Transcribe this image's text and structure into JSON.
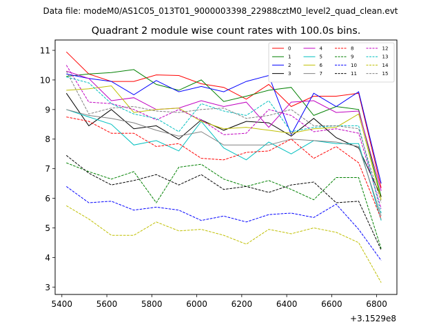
{
  "header": {
    "data_file": "Data file: modeM0/AS1C05_013T01_9000003398_22988cztM0_level2_quad_clean.evt"
  },
  "chart_data": {
    "type": "line",
    "title": "Quadrant 2 module wise count rates with 100.0s bins.",
    "x_offset_label": "+3.1529e8",
    "xlim": [
      5370,
      6890
    ],
    "ylim": [
      2.75,
      11.35
    ],
    "x_ticks": [
      5400,
      5600,
      5800,
      6000,
      6200,
      6400,
      6600,
      6800
    ],
    "x_tick_labels": [
      "5400",
      "5600",
      "5800",
      "6000",
      "6200",
      "6400",
      "6600",
      "6800"
    ],
    "y_ticks": [
      3,
      4,
      5,
      6,
      7,
      8,
      9,
      10,
      11
    ],
    "y_tick_labels": [
      "3",
      "4",
      "5",
      "6",
      "7",
      "8",
      "9",
      "10",
      "11"
    ],
    "x": [
      5420,
      5520,
      5620,
      5720,
      5820,
      5920,
      6020,
      6120,
      6220,
      6320,
      6420,
      6520,
      6620,
      6720,
      6820
    ],
    "legend_position": "top-right",
    "series": [
      {
        "name": "0",
        "color": "#ff0000",
        "style": "solid",
        "values": [
          10.95,
          10.2,
          9.95,
          9.95,
          10.17,
          10.15,
          9.87,
          9.75,
          9.35,
          9.85,
          9.1,
          9.45,
          9.45,
          9.55,
          6.35
        ]
      },
      {
        "name": "1",
        "color": "#008000",
        "style": "solid",
        "values": [
          10.12,
          10.2,
          10.25,
          10.35,
          9.85,
          9.65,
          10.0,
          9.27,
          9.45,
          9.65,
          9.75,
          8.8,
          9.1,
          9.0,
          6.05
        ]
      },
      {
        "name": "2",
        "color": "#0000ff",
        "style": "solid",
        "values": [
          10.2,
          10.05,
          9.95,
          9.5,
          9.98,
          9.6,
          9.78,
          9.6,
          9.95,
          10.15,
          8.15,
          9.55,
          9.1,
          9.6,
          6.5
        ]
      },
      {
        "name": "3",
        "color": "#000000",
        "style": "solid",
        "values": [
          9.55,
          8.45,
          9.0,
          8.35,
          8.45,
          8.0,
          8.65,
          8.3,
          8.6,
          8.55,
          8.1,
          8.7,
          8.05,
          7.7,
          6.05
        ]
      },
      {
        "name": "4",
        "color": "#c000c0",
        "style": "solid",
        "values": [
          10.3,
          10.05,
          9.3,
          9.4,
          9.0,
          9.05,
          9.3,
          9.1,
          9.25,
          8.4,
          9.25,
          9.3,
          8.9,
          8.95,
          6.25
        ]
      },
      {
        "name": "5",
        "color": "#00bfbf",
        "style": "solid",
        "values": [
          9.0,
          8.75,
          8.5,
          7.8,
          7.95,
          7.6,
          8.6,
          7.7,
          7.3,
          7.9,
          7.5,
          7.95,
          7.85,
          7.85,
          5.25
        ]
      },
      {
        "name": "6",
        "color": "#bfbf00",
        "style": "solid",
        "values": [
          9.65,
          9.7,
          9.8,
          8.9,
          9.0,
          9.05,
          8.6,
          8.35,
          8.4,
          8.3,
          8.2,
          8.35,
          8.4,
          8.85,
          5.95
        ]
      },
      {
        "name": "7",
        "color": "#808080",
        "style": "solid",
        "values": [
          9.0,
          8.8,
          8.7,
          8.55,
          8.3,
          8.1,
          8.25,
          7.8,
          7.8,
          7.8,
          8.0,
          7.95,
          7.9,
          7.75,
          5.4
        ]
      },
      {
        "name": "8",
        "color": "#ff0000",
        "style": "dashed",
        "values": [
          8.75,
          8.6,
          8.2,
          8.2,
          7.75,
          7.85,
          7.35,
          7.3,
          7.55,
          7.6,
          8.0,
          7.35,
          7.75,
          7.2,
          5.3
        ]
      },
      {
        "name": "9",
        "color": "#008000",
        "style": "dashed",
        "values": [
          7.2,
          6.9,
          6.65,
          6.9,
          5.85,
          7.05,
          7.15,
          6.65,
          6.4,
          6.6,
          6.3,
          5.95,
          6.7,
          6.7,
          4.3
        ]
      },
      {
        "name": "10",
        "color": "#0000ff",
        "style": "dashed",
        "values": [
          6.4,
          5.85,
          5.9,
          5.6,
          5.7,
          5.6,
          5.25,
          5.4,
          5.2,
          5.45,
          5.5,
          5.35,
          5.8,
          4.95,
          3.9
        ]
      },
      {
        "name": "11",
        "color": "#000000",
        "style": "dashed",
        "values": [
          7.45,
          6.85,
          6.45,
          6.6,
          6.8,
          6.45,
          6.8,
          6.3,
          6.4,
          6.2,
          6.45,
          6.55,
          5.85,
          5.9,
          4.25
        ]
      },
      {
        "name": "12",
        "color": "#c000c0",
        "style": "dashed",
        "values": [
          10.5,
          9.25,
          9.2,
          9.0,
          8.65,
          9.0,
          8.65,
          8.15,
          8.2,
          9.0,
          8.8,
          8.25,
          8.35,
          8.2,
          5.65
        ]
      },
      {
        "name": "13",
        "color": "#00bfbf",
        "style": "dashed",
        "values": [
          10.1,
          9.9,
          9.2,
          8.85,
          8.7,
          8.25,
          9.2,
          8.95,
          8.8,
          9.3,
          8.25,
          8.4,
          8.45,
          8.45,
          5.5
        ]
      },
      {
        "name": "14",
        "color": "#bfbf00",
        "style": "dashed",
        "values": [
          5.75,
          5.3,
          4.75,
          4.75,
          5.2,
          4.9,
          4.95,
          4.75,
          4.45,
          4.95,
          4.8,
          5.0,
          4.85,
          4.5,
          3.15
        ]
      },
      {
        "name": "15",
        "color": "#808080",
        "style": "dashed",
        "values": [
          10.3,
          8.85,
          9.05,
          9.1,
          8.95,
          8.9,
          9.0,
          9.05,
          8.7,
          8.8,
          9.0,
          8.45,
          8.45,
          8.35,
          5.85
        ]
      }
    ]
  }
}
